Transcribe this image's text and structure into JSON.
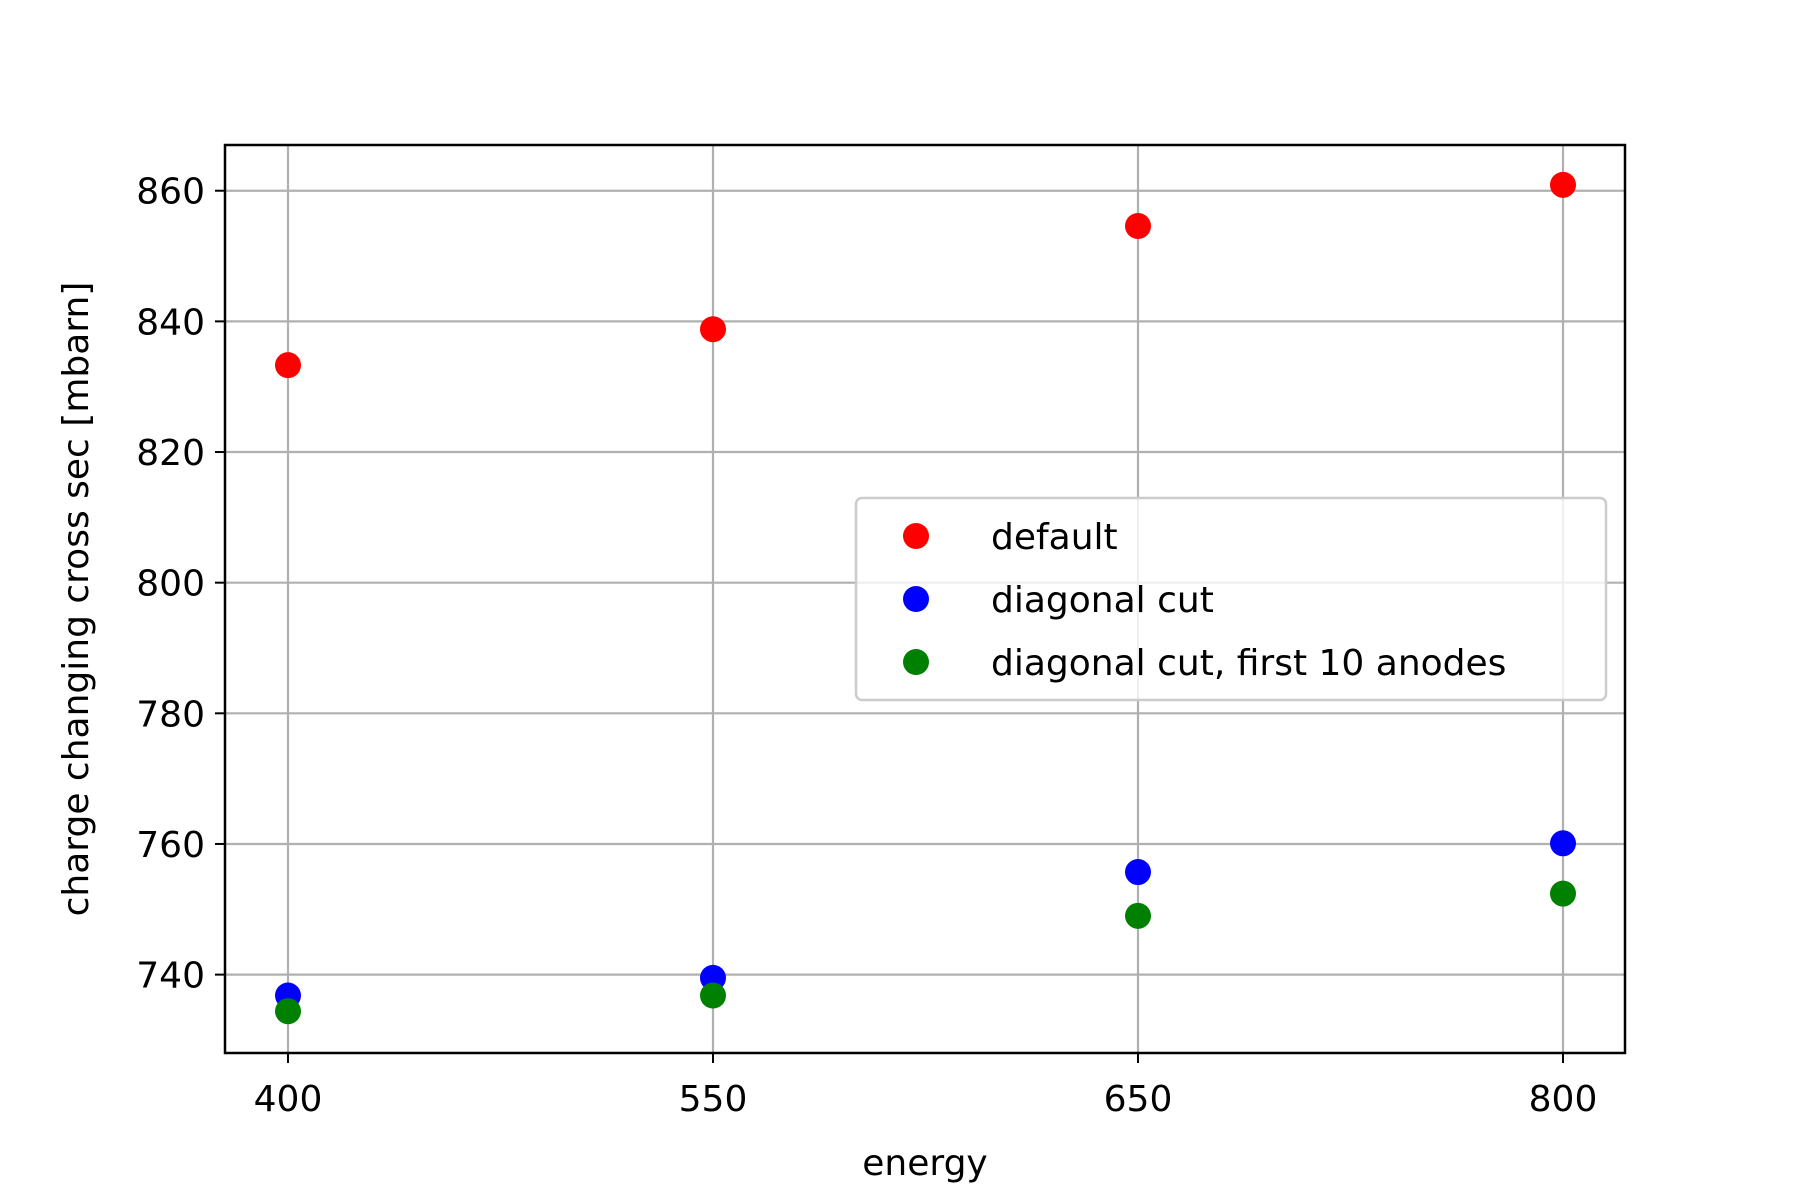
{
  "chart_data": {
    "type": "scatter",
    "xlabel": "energy",
    "ylabel": "charge changing cross sec [mbarn]",
    "x_categories": [
      "400",
      "550",
      "650",
      "800"
    ],
    "ylim": [
      728,
      867
    ],
    "yticks": [
      740,
      760,
      780,
      800,
      820,
      840,
      860
    ],
    "grid": true,
    "legend_position": "center-right",
    "series": [
      {
        "name": "default",
        "color": "#ff0000",
        "values": [
          833.3,
          838.8,
          854.6,
          860.9
        ]
      },
      {
        "name": "diagonal cut",
        "color": "#0000ff",
        "values": [
          736.8,
          739.5,
          755.7,
          760.1
        ]
      },
      {
        "name": "diagonal cut, first 10 anodes",
        "color": "#008000",
        "values": [
          734.4,
          736.8,
          749.0,
          752.4
        ]
      }
    ]
  }
}
